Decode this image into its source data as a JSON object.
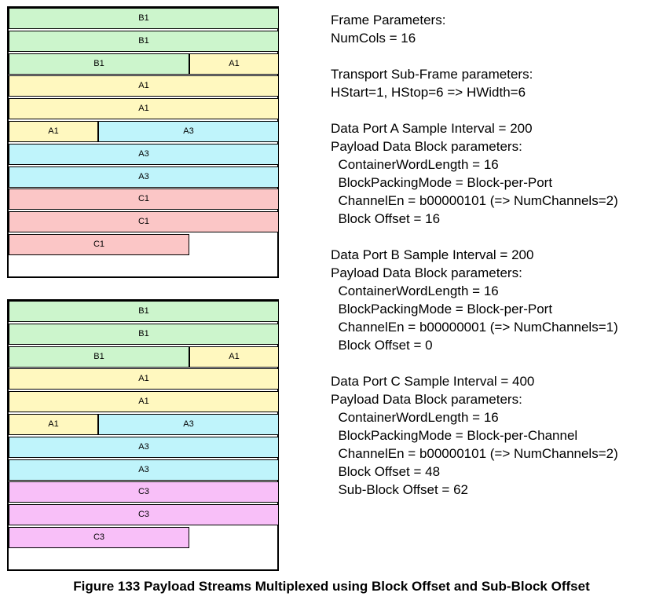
{
  "frames": [
    {
      "rows": [
        [
          {
            "label": "B1",
            "color": "#ccf5cc"
          }
        ],
        [
          {
            "label": "B1",
            "color": "#ccf5cc"
          }
        ],
        [
          {
            "label": "B1",
            "color": "#ccf5cc"
          },
          {
            "label": "A1",
            "color": "#fff8bf"
          }
        ],
        [
          {
            "label": "A1",
            "color": "#fff8bf"
          }
        ],
        [
          {
            "label": "A1",
            "color": "#fff8bf"
          }
        ],
        [
          {
            "label": "A1",
            "color": "#fff8bf"
          },
          {
            "label": "A3",
            "color": "#bff4fb"
          }
        ],
        [
          {
            "label": "A3",
            "color": "#bff4fb"
          }
        ],
        [
          {
            "label": "A3",
            "color": "#bff4fb"
          }
        ],
        [
          {
            "label": "C1",
            "color": "#fbc6c6"
          }
        ],
        [
          {
            "label": "C1",
            "color": "#fbc6c6"
          }
        ],
        [
          {
            "label": "C1",
            "color": "#fbc6c6"
          }
        ]
      ]
    },
    {
      "rows": [
        [
          {
            "label": "B1",
            "color": "#ccf5cc"
          }
        ],
        [
          {
            "label": "B1",
            "color": "#ccf5cc"
          }
        ],
        [
          {
            "label": "B1",
            "color": "#ccf5cc"
          },
          {
            "label": "A1",
            "color": "#fff8bf"
          }
        ],
        [
          {
            "label": "A1",
            "color": "#fff8bf"
          }
        ],
        [
          {
            "label": "A1",
            "color": "#fff8bf"
          }
        ],
        [
          {
            "label": "A1",
            "color": "#fff8bf"
          },
          {
            "label": "A3",
            "color": "#bff4fb"
          }
        ],
        [
          {
            "label": "A3",
            "color": "#bff4fb"
          }
        ],
        [
          {
            "label": "A3",
            "color": "#bff4fb"
          }
        ],
        [
          {
            "label": "C3",
            "color": "#f8bff8"
          }
        ],
        [
          {
            "label": "C3",
            "color": "#f8bff8"
          }
        ],
        [
          {
            "label": "C3",
            "color": "#f8bff8"
          }
        ]
      ]
    }
  ],
  "params": [
    "Frame Parameters:",
    "NumCols = 16",
    "",
    "Transport Sub-Frame parameters:",
    "HStart=1, HStop=6 => HWidth=6",
    "",
    "Data Port A Sample Interval = 200",
    "Payload Data Block parameters:",
    "  ContainerWordLength = 16",
    "  BlockPackingMode = Block-per-Port",
    "  ChannelEn = b00000101 (=> NumChannels=2)",
    "  Block Offset = 16",
    "",
    "Data Port B Sample Interval = 200",
    "Payload Data Block parameters:",
    "  ContainerWordLength = 16",
    "  BlockPackingMode = Block-per-Port",
    "  ChannelEn = b00000001 (=> NumChannels=1)",
    "  Block Offset = 0",
    "",
    "Data Port C Sample Interval = 400",
    "Payload Data Block parameters:",
    "  ContainerWordLength = 16",
    "  BlockPackingMode = Block-per-Channel",
    "  ChannelEn = b00000101 (=> NumChannels=2)",
    "  Block Offset = 48",
    "  Sub-Block Offset = 62"
  ],
  "caption": "Figure 133 Payload Streams Multiplexed using Block Offset and Sub-Block Offset"
}
